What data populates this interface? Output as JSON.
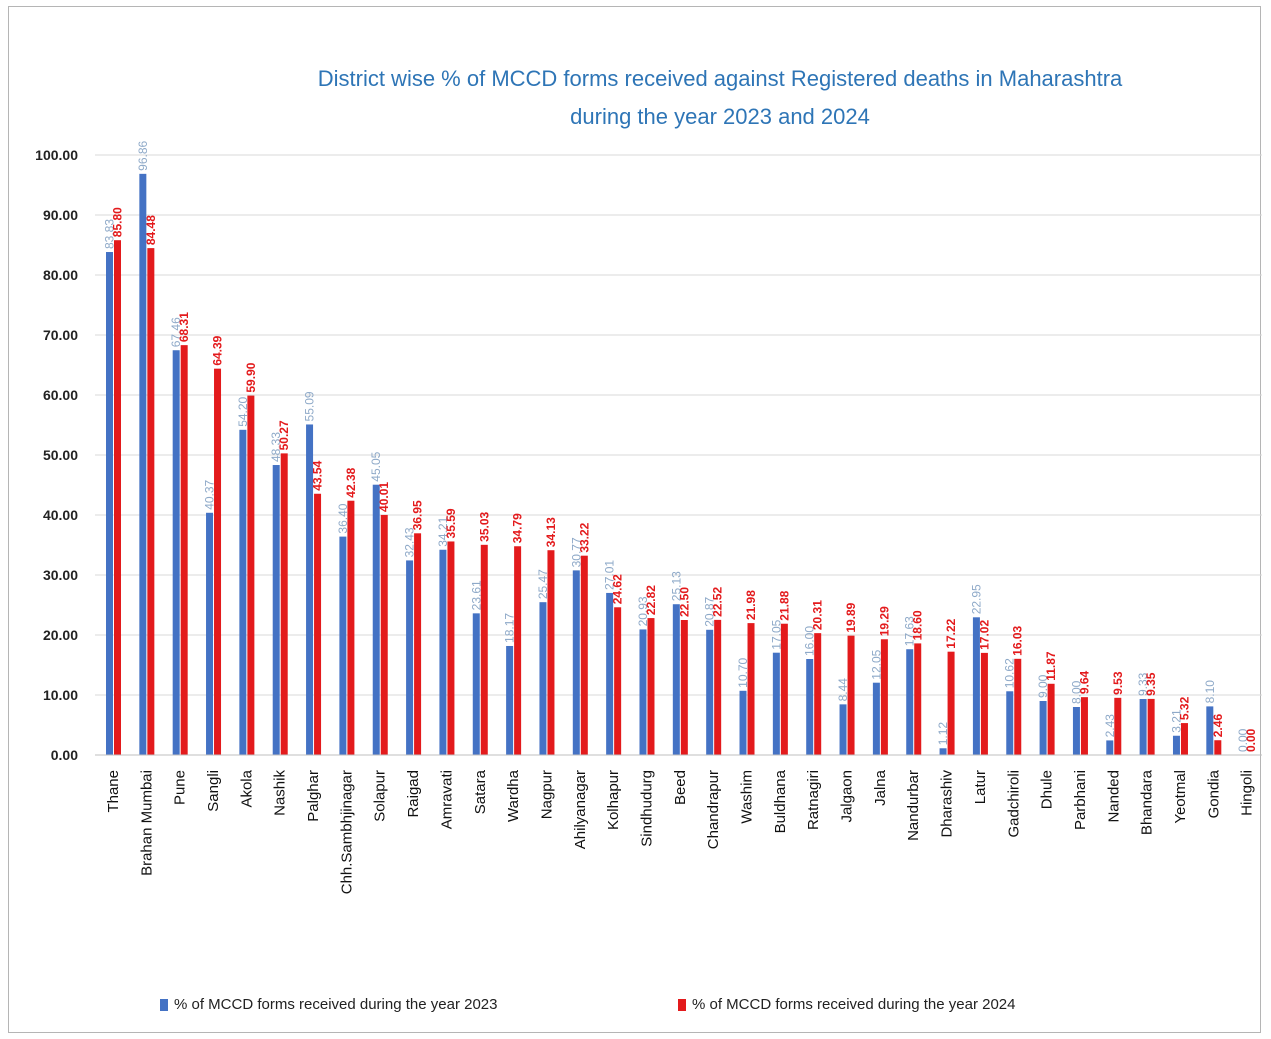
{
  "colors": {
    "series2023": "#4472c4",
    "series2024": "#e31a1c",
    "title": "#2e75b6",
    "grid": "#d9d9d9",
    "label2023": "#8ea9c8"
  },
  "chart_data": {
    "type": "bar",
    "title_line1": "District wise % of MCCD forms received against Registered deaths in Maharashtra",
    "title_line2": "during the year  2023 and 2024",
    "ylim": [
      0,
      100
    ],
    "yticks": [
      "0.00",
      "10.00",
      "20.00",
      "30.00",
      "40.00",
      "50.00",
      "60.00",
      "70.00",
      "80.00",
      "90.00",
      "100.00"
    ],
    "grid": true,
    "legend_position": "bottom",
    "categories": [
      "Thane",
      "Brahan Mumbai",
      "Pune",
      "Sangli",
      "Akola",
      "Nashik",
      "Palghar",
      "Chh.Sambhjinagar",
      "Solapur",
      "Raigad",
      "Amravati",
      "Satara",
      "Wardha",
      "Nagpur",
      "Ahilyanagar",
      "Kolhapur",
      "Sindhudurg",
      "Beed",
      "Chandrapur",
      "Washim",
      "Buldhana",
      "Ratnagiri",
      "Jalgaon",
      "Jalna",
      "Nandurbar",
      "Dharashiv",
      "Latur",
      "Gadchiroli",
      "Dhule",
      "Parbhani",
      "Nanded",
      "Bhandara",
      "Yeotmal",
      "Gondia",
      "Hingoli"
    ],
    "series": [
      {
        "name": "% of MCCD forms received during the year 2023",
        "values": [
          83.83,
          96.86,
          67.46,
          40.37,
          54.2,
          48.33,
          55.09,
          36.4,
          45.05,
          32.43,
          34.21,
          23.61,
          18.17,
          25.47,
          30.77,
          27.01,
          20.93,
          25.13,
          20.87,
          10.7,
          17.05,
          16.0,
          8.44,
          12.05,
          17.63,
          1.12,
          22.95,
          10.62,
          9.0,
          8.0,
          2.43,
          9.33,
          3.21,
          8.1,
          0.0
        ],
        "labels": [
          "83.83",
          "96.86",
          "67.46",
          "40.37",
          "54.20",
          "48.33",
          "55.09",
          "36.40",
          "45.05",
          "32.43",
          "34.21",
          "23.61",
          "18.17",
          "25.47",
          "30.77",
          "27.01",
          "20.93",
          "25.13",
          "20.87",
          "10.70",
          "17.05",
          "16.00",
          "8.44",
          "12.05",
          "17.63",
          "1.12",
          "22.95",
          "10.62",
          "9.00",
          "8.00",
          "2.43",
          "9.33",
          "3.21",
          "8.10",
          "0.00"
        ]
      },
      {
        "name": "% of MCCD forms received during the year 2024",
        "values": [
          85.8,
          84.48,
          68.31,
          64.39,
          59.9,
          50.27,
          43.54,
          42.38,
          40.01,
          36.95,
          35.59,
          35.03,
          34.79,
          34.13,
          33.22,
          24.62,
          22.82,
          22.5,
          22.52,
          21.98,
          21.88,
          20.31,
          19.89,
          19.29,
          18.6,
          17.22,
          17.02,
          16.03,
          11.87,
          9.64,
          9.53,
          9.35,
          5.32,
          2.46,
          0.0
        ],
        "labels": [
          "85.80",
          "84.48",
          "68.31",
          "64.39",
          "59.90",
          "50.27",
          "43.54",
          "42.38",
          "40.01",
          "36.95",
          "35.59",
          "35.03",
          "34.79",
          "34.13",
          "33.22",
          "24.62",
          "22.82",
          "22.50",
          "22.52",
          "21.98",
          "21.88",
          "20.31",
          "19.89",
          "19.29",
          "18.60",
          "17.22",
          "17.02",
          "16.03",
          "11.87",
          "9.64",
          "9.53",
          "9.35",
          "5.32",
          "2.46",
          "0.00"
        ]
      }
    ]
  }
}
